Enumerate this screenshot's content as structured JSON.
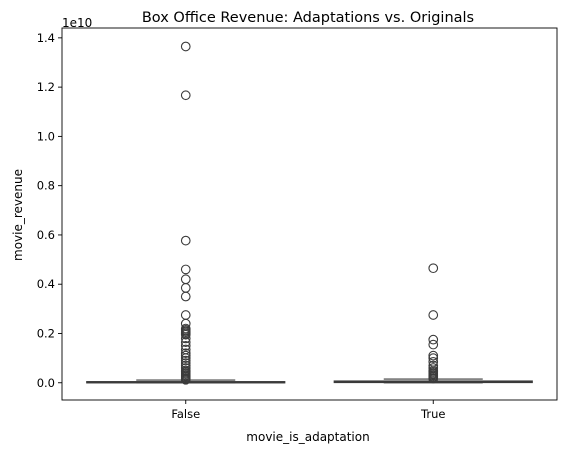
{
  "chart_data": {
    "type": "box",
    "title": "Box Office Revenue: Adaptations vs. Originals",
    "xlabel": "movie_is_adaptation",
    "ylabel": "movie_revenue",
    "y_offset_label": "1e10",
    "y_scale_factor": 10000000000.0,
    "ylim": [
      -0.07,
      1.44
    ],
    "yticks": [
      0.0,
      0.2,
      0.4,
      0.6,
      0.8,
      1.0,
      1.2,
      1.4
    ],
    "ytick_labels": [
      "0.0",
      "0.2",
      "0.4",
      "0.6",
      "0.8",
      "1.0",
      "1.2",
      "1.4"
    ],
    "categories": [
      "False",
      "True"
    ],
    "grid": false,
    "box_color": "#3b3b3b",
    "boxes": [
      {
        "category": "False",
        "whisker_low": 0.0,
        "q1": 0.0,
        "median": 0.0015,
        "q3": 0.0045,
        "whisker_high": 0.011,
        "outliers": [
          1.365,
          1.167,
          0.577,
          0.46,
          0.42,
          0.385,
          0.35,
          0.275,
          0.24,
          0.22,
          0.215,
          0.21,
          0.205,
          0.2,
          0.195,
          0.18,
          0.165,
          0.15,
          0.135,
          0.12,
          0.11,
          0.1,
          0.09,
          0.08,
          0.07,
          0.06,
          0.05,
          0.045,
          0.04,
          0.035,
          0.03,
          0.025,
          0.02,
          0.016,
          0.012
        ]
      },
      {
        "category": "True",
        "whisker_low": 0.0,
        "q1": 0.001,
        "median": 0.003,
        "q3": 0.007,
        "whisker_high": 0.015,
        "outliers": [
          0.465,
          0.275,
          0.175,
          0.155,
          0.11,
          0.1,
          0.085,
          0.07,
          0.06,
          0.05,
          0.045,
          0.04,
          0.035,
          0.03,
          0.025,
          0.02,
          0.017
        ]
      }
    ]
  }
}
